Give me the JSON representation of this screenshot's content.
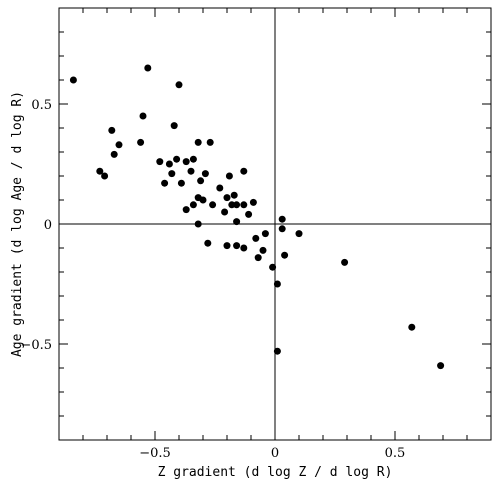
{
  "chart_data": {
    "type": "scatter",
    "title": "",
    "xlabel": "Z gradient (d log Z / d log R)",
    "ylabel": "Age gradient (d log Age / d log R)",
    "xlim": [
      -0.9,
      0.9
    ],
    "ylim": [
      -0.9,
      0.9
    ],
    "x_major_ticks": [
      -0.5,
      0,
      0.5
    ],
    "x_tick_labels": [
      "−0.5",
      "0",
      "0.5"
    ],
    "y_major_ticks": [
      -0.5,
      0,
      0.5
    ],
    "y_tick_labels": [
      "−0.5",
      "0",
      "0.5"
    ],
    "minor_tick_step": 0.1,
    "zero_lines": true,
    "grid": false,
    "series": [
      {
        "points": [
          [
            -0.84,
            0.6
          ],
          [
            -0.53,
            0.65
          ],
          [
            -0.4,
            0.58
          ],
          [
            -0.55,
            0.45
          ],
          [
            -0.42,
            0.41
          ],
          [
            -0.68,
            0.39
          ],
          [
            -0.56,
            0.34
          ],
          [
            -0.65,
            0.33
          ],
          [
            -0.32,
            0.34
          ],
          [
            -0.27,
            0.34
          ],
          [
            -0.67,
            0.29
          ],
          [
            -0.48,
            0.26
          ],
          [
            -0.44,
            0.25
          ],
          [
            -0.41,
            0.27
          ],
          [
            -0.37,
            0.26
          ],
          [
            -0.34,
            0.27
          ],
          [
            -0.73,
            0.22
          ],
          [
            -0.71,
            0.2
          ],
          [
            -0.43,
            0.21
          ],
          [
            -0.35,
            0.22
          ],
          [
            -0.29,
            0.21
          ],
          [
            -0.46,
            0.17
          ],
          [
            -0.39,
            0.17
          ],
          [
            -0.31,
            0.18
          ],
          [
            -0.13,
            0.22
          ],
          [
            -0.19,
            0.2
          ],
          [
            -0.23,
            0.15
          ],
          [
            -0.37,
            0.06
          ],
          [
            -0.34,
            0.08
          ],
          [
            -0.32,
            0.11
          ],
          [
            -0.3,
            0.1
          ],
          [
            -0.26,
            0.08
          ],
          [
            -0.21,
            0.05
          ],
          [
            -0.2,
            0.11
          ],
          [
            -0.17,
            0.12
          ],
          [
            -0.18,
            0.08
          ],
          [
            -0.16,
            0.08
          ],
          [
            -0.13,
            0.08
          ],
          [
            -0.09,
            0.09
          ],
          [
            -0.16,
            0.01
          ],
          [
            -0.11,
            0.04
          ],
          [
            -0.32,
            0.0
          ],
          [
            -0.28,
            -0.08
          ],
          [
            -0.2,
            -0.09
          ],
          [
            -0.16,
            -0.09
          ],
          [
            -0.13,
            -0.1
          ],
          [
            -0.08,
            -0.06
          ],
          [
            -0.04,
            -0.04
          ],
          [
            -0.07,
            -0.14
          ],
          [
            -0.05,
            -0.11
          ],
          [
            -0.01,
            -0.18
          ],
          [
            0.01,
            -0.25
          ],
          [
            0.03,
            0.02
          ],
          [
            0.03,
            -0.02
          ],
          [
            0.1,
            -0.04
          ],
          [
            0.04,
            -0.13
          ],
          [
            0.29,
            -0.16
          ],
          [
            0.01,
            -0.53
          ],
          [
            0.57,
            -0.43
          ],
          [
            0.69,
            -0.59
          ]
        ]
      }
    ]
  }
}
